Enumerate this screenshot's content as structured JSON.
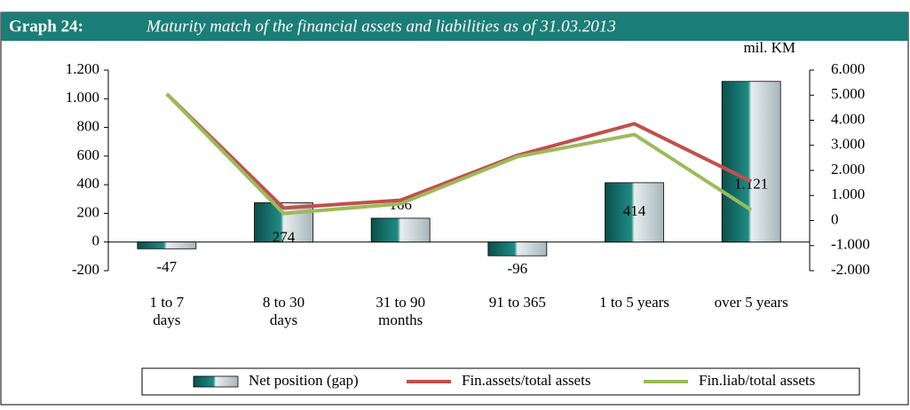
{
  "chart_data": {
    "type": "bar",
    "title_label": "Graph 24:",
    "title": "Maturity match of the financial assets and liabilities as of 31.03.2013",
    "unit_label": "mil. KM",
    "categories": [
      "1 to 7\ndays",
      "8 to 30\ndays",
      "31 to 90\nmonths",
      "91 to 365",
      "1 to 5 years",
      "over 5 years"
    ],
    "series": [
      {
        "name": "Net position (gap)",
        "type": "bar",
        "color": "#0f6b66",
        "values": [
          -47,
          274,
          166,
          -96,
          414,
          1121
        ],
        "value_labels": [
          "-47",
          "274",
          "166",
          "-96",
          "414",
          "1.121"
        ]
      },
      {
        "name": "Fin.assets/total assets",
        "type": "line",
        "axis": "y2",
        "color": "#c0504d",
        "values": [
          5050,
          500,
          810,
          2600,
          3860,
          1560
        ]
      },
      {
        "name": "Fin.liab/total assets",
        "type": "line",
        "axis": "y2",
        "color": "#9bbb59",
        "values": [
          5050,
          280,
          670,
          2550,
          3430,
          420
        ]
      }
    ],
    "ylim": [
      -200,
      1200
    ],
    "yticks": [
      {
        "value": -200,
        "label": "-200"
      },
      0,
      200,
      400,
      600,
      800,
      {
        "value": 1000,
        "label": "1.000"
      },
      {
        "value": 1200,
        "label": "1.200"
      }
    ],
    "y2lim": [
      -2000,
      6000
    ],
    "y2ticks": [
      {
        "value": -2000,
        "label": "-2.000"
      },
      {
        "value": -1000,
        "label": "-1.000"
      },
      0,
      {
        "value": 1000,
        "label": "1.000"
      },
      {
        "value": 2000,
        "label": "2.000"
      },
      {
        "value": 3000,
        "label": "3.000"
      },
      {
        "value": 4000,
        "label": "4.000"
      },
      {
        "value": 5000,
        "label": "5.000"
      },
      {
        "value": 6000,
        "label": "6.000"
      }
    ],
    "legend": "bottom"
  }
}
